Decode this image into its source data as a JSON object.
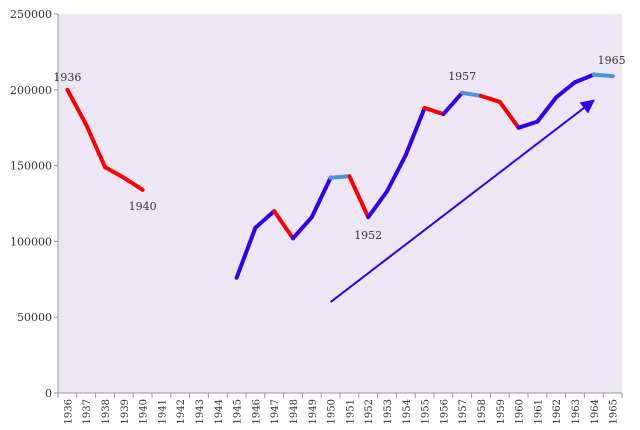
{
  "chart_data": {
    "type": "line",
    "title": "",
    "xlabel": "",
    "ylabel": "",
    "ylim": [
      0,
      250000
    ],
    "yticks": [
      "0",
      "50000",
      "100000",
      "150000",
      "200000",
      "250000"
    ],
    "categories": [
      "1936",
      "1937",
      "1938",
      "1939",
      "1940",
      "1941",
      "1942",
      "1943",
      "1944",
      "1945",
      "1946",
      "1947",
      "1948",
      "1949",
      "1950",
      "1951",
      "1952",
      "1953",
      "1954",
      "1955",
      "1956",
      "1957",
      "1958",
      "1959",
      "1960",
      "1961",
      "1962",
      "1963",
      "1964",
      "1965"
    ],
    "values": [
      200000,
      177000,
      149000,
      142000,
      134000,
      null,
      null,
      null,
      null,
      76000,
      109000,
      120000,
      102000,
      116000,
      142000,
      143000,
      116000,
      133000,
      157000,
      188000,
      184000,
      198000,
      196000,
      192000,
      175000,
      179000,
      195000,
      205000,
      210000,
      209000
    ],
    "segment_colors": {
      "up": "#3300ee",
      "down": "#ff0000",
      "flat": "#4d94d9"
    },
    "annotations": [
      {
        "text": "1936",
        "year": "1936"
      },
      {
        "text": "1940",
        "year": "1940"
      },
      {
        "text": "1952",
        "year": "1952"
      },
      {
        "text": "1957",
        "year": "1957"
      },
      {
        "text": "1965",
        "year": "1965"
      }
    ],
    "trend_arrow": {
      "from_year": "1950",
      "from_value": 60000,
      "to_year": "1964",
      "to_value": 193000,
      "color": "#3300ee"
    },
    "plot_background": "#ece6f5",
    "grid": false,
    "legend": "none"
  }
}
